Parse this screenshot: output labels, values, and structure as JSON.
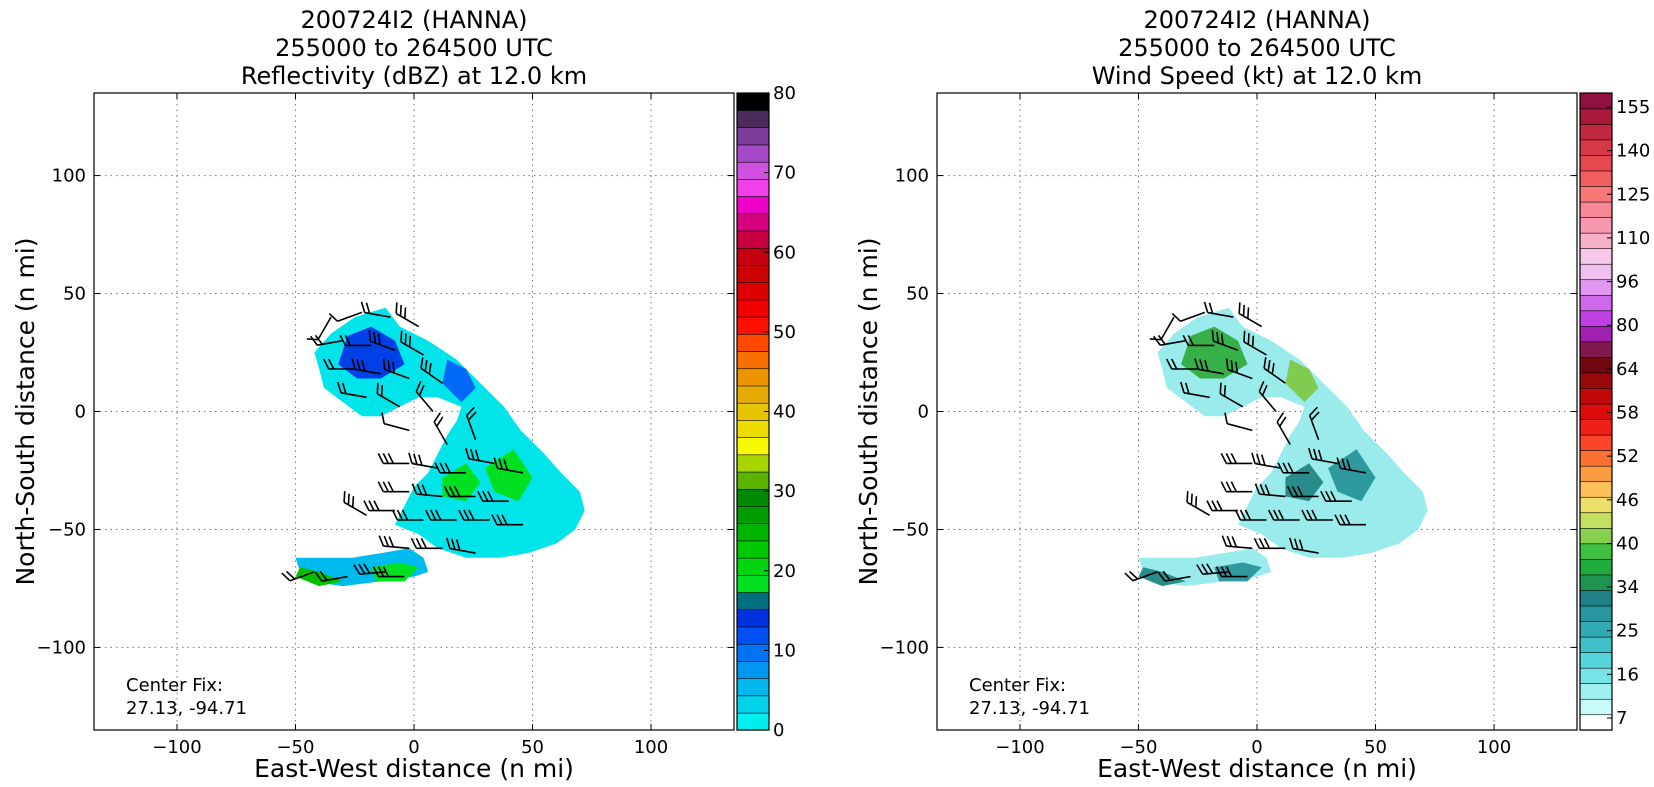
{
  "chart_data": [
    {
      "type": "heatmap",
      "title_lines": [
        "200724I2 (HANNA)",
        "255000 to 264500 UTC",
        "Reflectivity (dBZ) at 12.0 km"
      ],
      "xlabel": "East-West distance (n mi)",
      "ylabel": "North-South distance (n mi)",
      "xlim": [
        -135,
        135
      ],
      "ylim": [
        -135,
        135
      ],
      "xticks": [
        -100,
        -50,
        0,
        50,
        100
      ],
      "yticks": [
        -100,
        -50,
        0,
        50,
        100
      ],
      "xtick_labels": [
        "−100",
        "−50",
        "0",
        "50",
        "100"
      ],
      "ytick_labels": [
        "−100",
        "−50",
        "0",
        "50",
        "100"
      ],
      "grid": true,
      "annotation_lines": [
        "Center Fix:",
        "27.13, -94.71"
      ],
      "colorbar": {
        "range": [
          0,
          80
        ],
        "tick_values": [
          0,
          10,
          20,
          30,
          40,
          50,
          60,
          70,
          80
        ],
        "tick_labels": [
          "0",
          "10",
          "20",
          "30",
          "40",
          "50",
          "60",
          "70",
          "80"
        ],
        "colors": [
          "#00eeee",
          "#00d2ea",
          "#00b8ee",
          "#0096f2",
          "#0072f6",
          "#0050f6",
          "#0030e0",
          "#007080",
          "#00e020",
          "#00d410",
          "#00c800",
          "#00b400",
          "#009c00",
          "#008800",
          "#5cb400",
          "#a8d400",
          "#f8f800",
          "#ecdc00",
          "#e6c400",
          "#e6aa00",
          "#ee9400",
          "#fa7000",
          "#ff4800",
          "#ff1000",
          "#f20000",
          "#dc0000",
          "#cc0000",
          "#c40010",
          "#c80040",
          "#d8007c",
          "#ee00c8",
          "#f040e8",
          "#d050e0",
          "#a44ac8",
          "#7c3c9c",
          "#4c2c5c",
          "#000000"
        ]
      },
      "field_colors": [
        "#00e4ea",
        "#00bcee",
        "#0096f2",
        "#0068f4",
        "#0040e6",
        "#00e020",
        "#00c000"
      ],
      "barb_color": "#000000"
    },
    {
      "type": "heatmap",
      "title_lines": [
        "200724I2 (HANNA)",
        "255000 to 264500 UTC",
        "Wind Speed (kt) at 12.0 km"
      ],
      "xlabel": "East-West distance (n mi)",
      "ylabel": "North-South distance (n mi)",
      "xlim": [
        -135,
        135
      ],
      "ylim": [
        -135,
        135
      ],
      "xticks": [
        -100,
        -50,
        0,
        50,
        100
      ],
      "yticks": [
        -100,
        -50,
        0,
        50,
        100
      ],
      "xtick_labels": [
        "−100",
        "−50",
        "0",
        "50",
        "100"
      ],
      "ytick_labels": [
        "−100",
        "−50",
        "0",
        "50",
        "100"
      ],
      "grid": true,
      "annotation_lines": [
        "Center Fix:",
        "27.13, -94.71"
      ],
      "colorbar": {
        "tick_labels": [
          "7",
          "16",
          "25",
          "34",
          "40",
          "46",
          "52",
          "58",
          "64",
          "80",
          "96",
          "110",
          "125",
          "140",
          "155"
        ],
        "colors": [
          "#ffffff",
          "#c8fafa",
          "#a0f0f0",
          "#78e4e8",
          "#58d4dc",
          "#40c0c8",
          "#30aab4",
          "#28969e",
          "#208088",
          "#1e9450",
          "#20ac3c",
          "#40c040",
          "#88d050",
          "#c4e060",
          "#ece068",
          "#fcc058",
          "#fc9c40",
          "#fc7034",
          "#fc4428",
          "#f02018",
          "#dc0c0c",
          "#c00808",
          "#980808",
          "#700810",
          "#801850",
          "#a020b0",
          "#c040e4",
          "#d068ec",
          "#e098f0",
          "#f0c0f0",
          "#f8c8e8",
          "#f8b0c8",
          "#f898b0",
          "#f88898",
          "#f87878",
          "#f06060",
          "#e84850",
          "#d83848",
          "#c02840",
          "#a81838",
          "#901040"
        ]
      },
      "field_colors": [
        "#9aecec",
        "#6cdcdc",
        "#48c6c8",
        "#2e9aa0",
        "#2a8c8a",
        "#38b048",
        "#80cc50"
      ],
      "barb_color": "#000000"
    }
  ]
}
